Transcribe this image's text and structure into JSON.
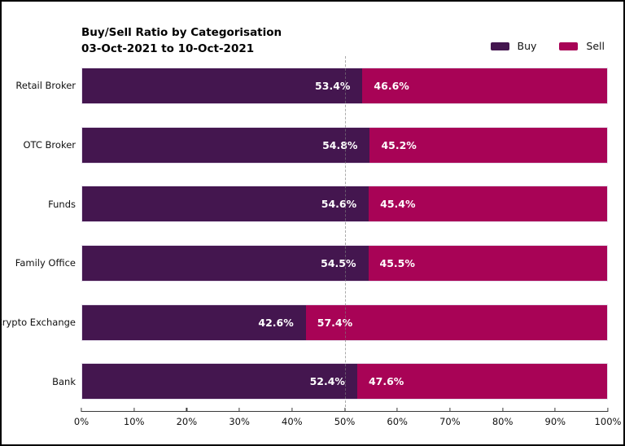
{
  "chart_data": {
    "type": "bar",
    "orientation": "horizontal-stacked",
    "title": "Buy/Sell Ratio by Categorisation",
    "subtitle": "03-Oct-2021 to 10-Oct-2021",
    "categories": [
      "Retail Broker",
      "OTC Broker",
      "Funds",
      "Family Office",
      "Crypto Exchange",
      "Bank"
    ],
    "series": [
      {
        "name": "Buy",
        "color": "#44164F",
        "values": [
          53.4,
          54.8,
          54.6,
          54.5,
          42.6,
          52.4
        ]
      },
      {
        "name": "Sell",
        "color": "#A80356",
        "values": [
          46.6,
          45.2,
          45.4,
          45.5,
          57.4,
          47.6
        ]
      }
    ],
    "value_labels": {
      "Buy": [
        "53.4%",
        "54.8%",
        "54.6%",
        "54.5%",
        "42.6%",
        "52.4%"
      ],
      "Sell": [
        "46.6%",
        "45.2%",
        "45.4%",
        "45.5%",
        "57.4%",
        "47.6%"
      ]
    },
    "xlim": [
      0,
      100
    ],
    "x_ticks": [
      "0%",
      "10%",
      "20%",
      "30%",
      "40%",
      "50%",
      "60%",
      "70%",
      "80%",
      "90%",
      "100%"
    ],
    "reference_line": {
      "value": 50,
      "style": "dashed",
      "color": "#7d7d7d"
    },
    "legend": {
      "position": "top-right"
    },
    "grid": "off",
    "value_label_color": "#ffffff",
    "text_color": "#111111"
  }
}
